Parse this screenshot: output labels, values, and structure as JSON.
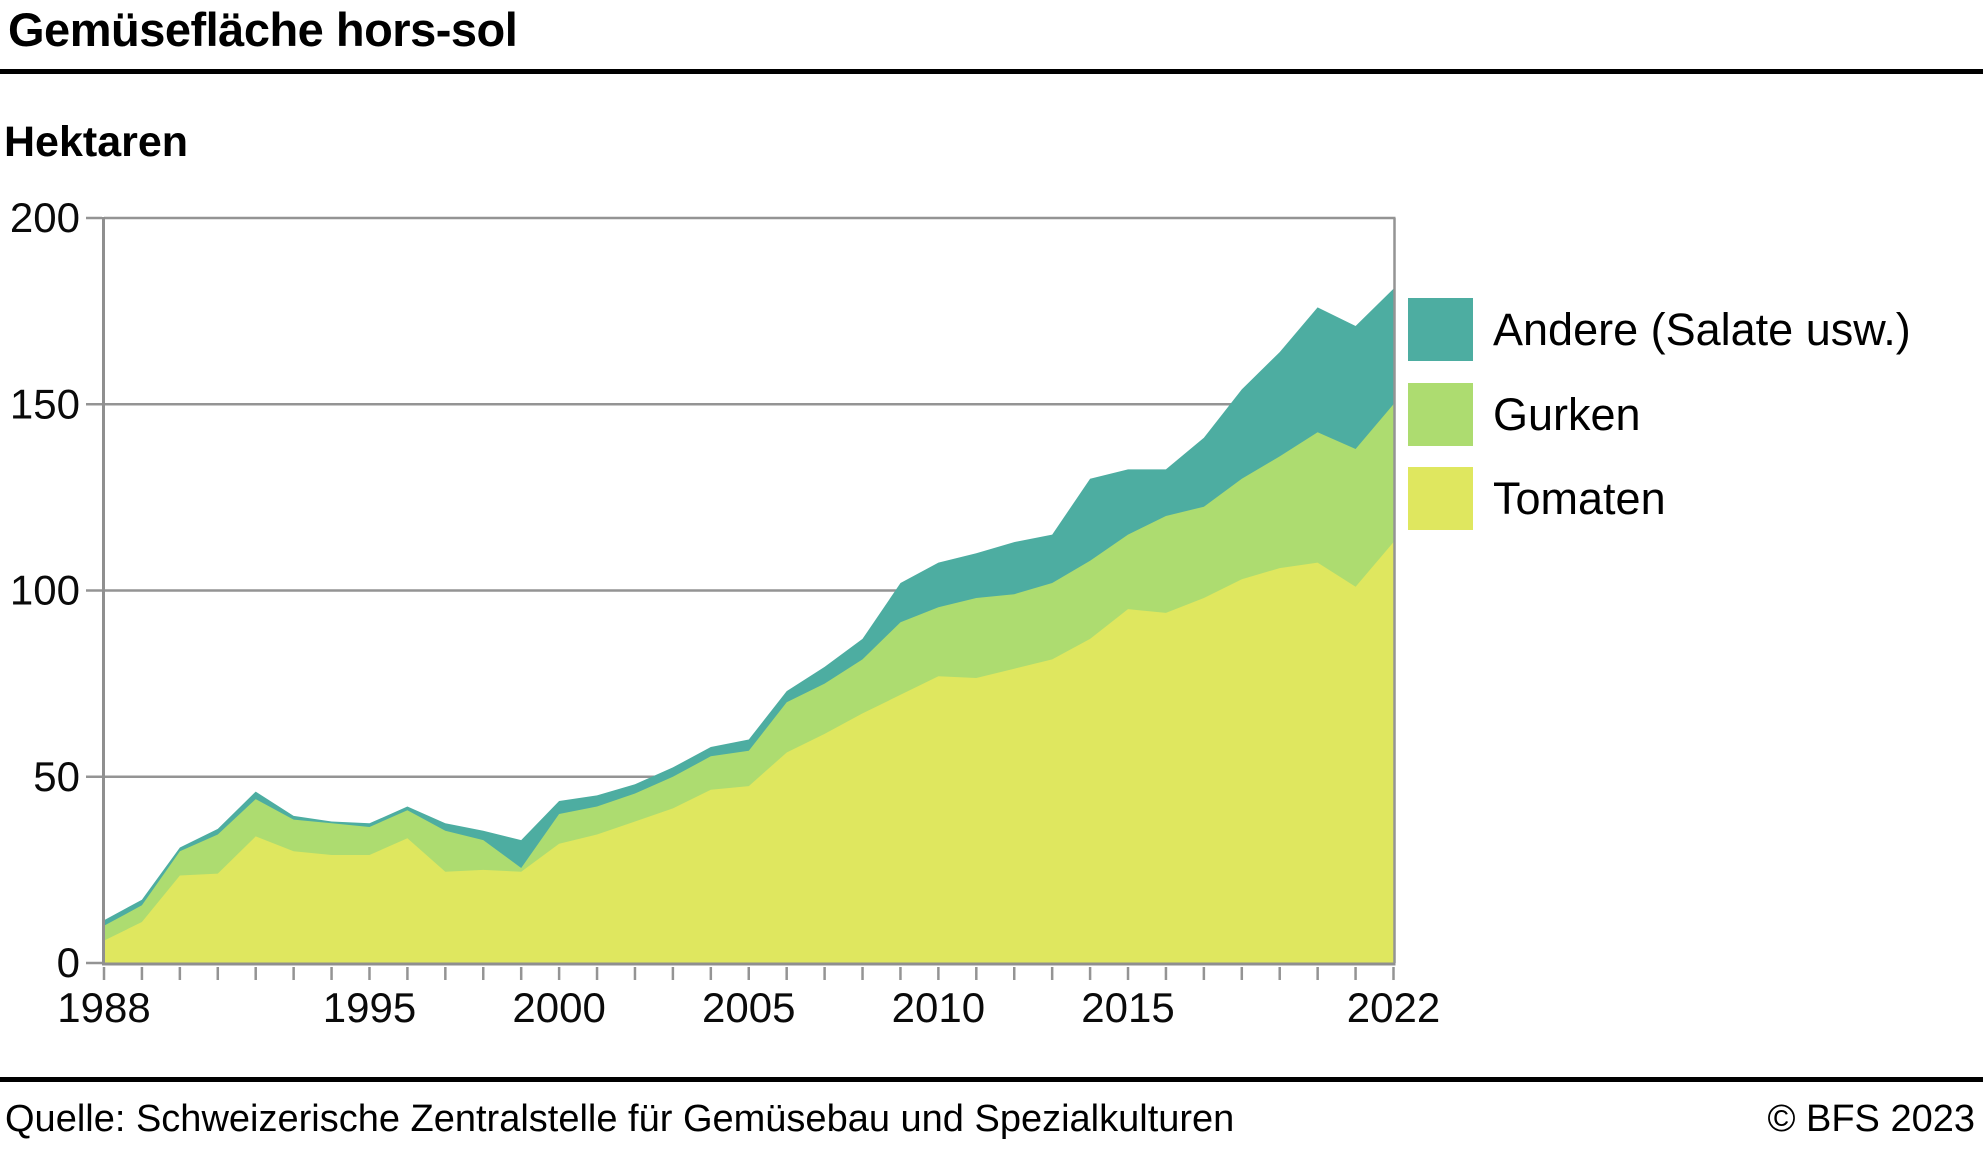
{
  "header": {
    "title": "Gemüsefläche hors-sol",
    "unit_label": "Hektaren"
  },
  "footer": {
    "source": "Quelle: Schweizerische Zentralstelle für Gemüsebau und Spezialkulturen",
    "copyright": "© BFS 2023"
  },
  "colors": {
    "andere": "#4DADA1",
    "gurken": "#ADDC70",
    "tomaten": "#DFE75F",
    "grid": "#949494",
    "axis": "#8f8f8f",
    "text": "#0a0a0a"
  },
  "chart_data": {
    "type": "area",
    "stacked": true,
    "title": "Gemüsefläche hors-sol",
    "ylabel": "Hektaren",
    "xlabel": "",
    "grid": true,
    "legend_position": "right-top",
    "ylim": [
      0,
      200
    ],
    "y_ticks": [
      0,
      50,
      100,
      150,
      200
    ],
    "x_range": [
      1988,
      2022
    ],
    "x_tick_step": 1,
    "x_tick_labels": [
      "1988",
      "1995",
      "2000",
      "2005",
      "2010",
      "2015",
      "2022"
    ],
    "x_tick_label_years": [
      1988,
      1995,
      2000,
      2005,
      2010,
      2015,
      2022
    ],
    "years": [
      1988,
      1989,
      1990,
      1991,
      1992,
      1993,
      1994,
      1995,
      1996,
      1997,
      1998,
      1999,
      2000,
      2001,
      2002,
      2003,
      2004,
      2005,
      2006,
      2007,
      2008,
      2009,
      2010,
      2011,
      2012,
      2013,
      2014,
      2015,
      2016,
      2017,
      2018,
      2019,
      2020,
      2021,
      2022
    ],
    "series": [
      {
        "name": "Andere (Salate usw.)",
        "stack_order": 3,
        "color": "#4DADA1",
        "values": [
          1.5,
          1.5,
          1,
          1.5,
          2,
          1,
          0.5,
          1,
          1,
          2,
          2.5,
          7.5,
          3.5,
          3,
          2.5,
          2.5,
          2.5,
          3,
          3,
          4.5,
          5.5,
          10.5,
          12,
          12,
          14,
          13,
          22,
          17.5,
          12.5,
          18.5,
          24,
          28,
          33.5,
          33,
          31
        ]
      },
      {
        "name": "Gurken",
        "stack_order": 2,
        "color": "#ADDC70",
        "values": [
          4,
          4.5,
          6.5,
          10.5,
          10,
          8.5,
          8.5,
          7.5,
          7.5,
          11,
          8,
          1,
          8,
          7.5,
          7.5,
          8.5,
          9,
          9.5,
          13.5,
          13.5,
          14.5,
          19.5,
          18.5,
          21.5,
          20,
          20.5,
          21,
          20,
          26,
          24.5,
          27,
          30,
          35,
          37,
          37
        ]
      },
      {
        "name": "Tomaten",
        "stack_order": 1,
        "color": "#DFE75F",
        "values": [
          6,
          11,
          23.5,
          24,
          34,
          30,
          29,
          29,
          33.5,
          24.5,
          25,
          24.5,
          32,
          34.5,
          38,
          41.5,
          46.5,
          47.5,
          56.5,
          61.5,
          67,
          72,
          77,
          76.5,
          79,
          81.5,
          87,
          95,
          94,
          98,
          103,
          106,
          107.5,
          101,
          113
        ]
      }
    ]
  }
}
